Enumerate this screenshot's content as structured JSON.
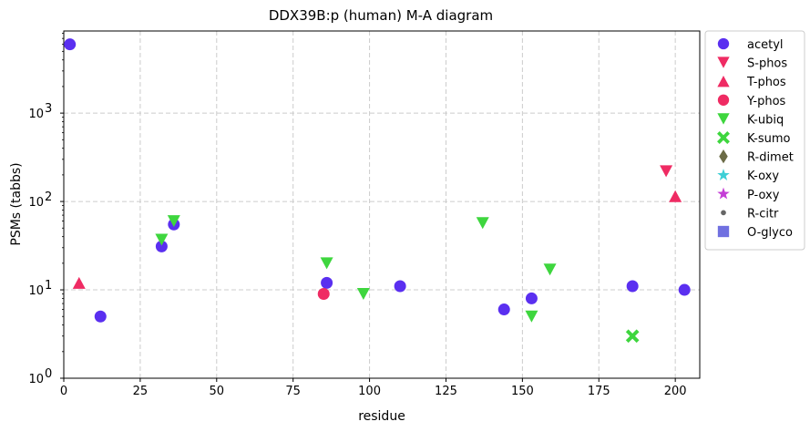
{
  "chart_data": {
    "type": "scatter",
    "title": "DDX39B:p (human) M-A diagram",
    "xlabel": "residue",
    "ylabel": "PSMs (tabbs)",
    "xlim": [
      0,
      208
    ],
    "ylim": [
      1,
      8500
    ],
    "yscale": "log",
    "grid": true,
    "legend_position": "outside-right",
    "x_ticks": [
      0,
      25,
      50,
      75,
      100,
      125,
      150,
      175,
      200
    ],
    "y_ticks": [
      {
        "value": 1,
        "base": "10",
        "exp": "0"
      },
      {
        "value": 10,
        "base": "10",
        "exp": "1"
      },
      {
        "value": 100,
        "base": "10",
        "exp": "2"
      },
      {
        "value": 1000,
        "base": "10",
        "exp": "3"
      }
    ],
    "series": [
      {
        "name": "acetyl",
        "marker": "circle",
        "color": "#5a2ff0",
        "points": [
          [
            2,
            6000
          ],
          [
            12,
            5
          ],
          [
            32,
            31
          ],
          [
            36,
            55
          ],
          [
            86,
            12
          ],
          [
            110,
            11
          ],
          [
            144,
            6
          ],
          [
            153,
            8
          ],
          [
            186,
            11
          ],
          [
            203,
            10
          ]
        ]
      },
      {
        "name": "S-phos",
        "marker": "triangle-down",
        "color": "#ef2b63",
        "points": [
          [
            197,
            220
          ]
        ]
      },
      {
        "name": "T-phos",
        "marker": "triangle-up",
        "color": "#ef2b63",
        "points": [
          [
            5,
            12
          ],
          [
            200,
            115
          ]
        ]
      },
      {
        "name": "Y-phos",
        "marker": "circle",
        "color": "#ef2b63",
        "points": [
          [
            85,
            9
          ]
        ]
      },
      {
        "name": "K-ubiq",
        "marker": "triangle-down",
        "color": "#3ed63e",
        "points": [
          [
            32,
            37
          ],
          [
            36,
            60
          ],
          [
            86,
            20
          ],
          [
            98,
            9
          ],
          [
            137,
            57
          ],
          [
            153,
            5
          ],
          [
            159,
            17
          ]
        ]
      },
      {
        "name": "K-sumo",
        "marker": "x",
        "color": "#3ed63e",
        "points": [
          [
            186,
            3
          ]
        ]
      },
      {
        "name": "R-dimet",
        "marker": "diamond",
        "color": "#6b6b46",
        "points": []
      },
      {
        "name": "K-oxy",
        "marker": "star",
        "color": "#3ecfd6",
        "points": []
      },
      {
        "name": "P-oxy",
        "marker": "star",
        "color": "#c43ed6",
        "points": []
      },
      {
        "name": "R-citr",
        "marker": "dot",
        "color": "#666666",
        "points": []
      },
      {
        "name": "O-glyco",
        "marker": "square",
        "color": "#7070e0",
        "points": []
      }
    ]
  }
}
